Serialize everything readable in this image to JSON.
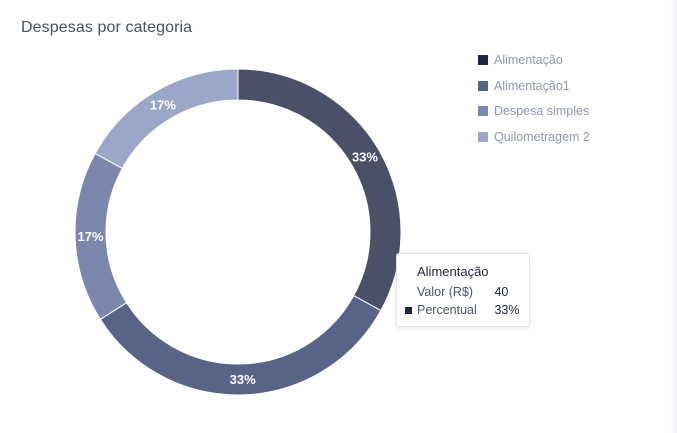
{
  "card": {
    "title": "Despesas por categoria"
  },
  "chart_data": {
    "type": "pie",
    "title": "Despesas por categoria",
    "donut": true,
    "categories": [
      "Alimentação",
      "Alimentação1",
      "Despesa simples",
      "Quilometragem 2"
    ],
    "values": [
      33,
      33,
      17,
      17
    ],
    "data_labels": [
      "33%",
      "33%",
      "17%",
      "17%"
    ],
    "colors": [
      "#4a5068",
      "#576387",
      "#7b87ac",
      "#9aa7c8"
    ],
    "legend_colors": [
      "#1c2640",
      "#576387",
      "#7b87ac",
      "#9aa7c8"
    ],
    "legend_position": "top-right"
  },
  "tooltip": {
    "title": "Alimentação",
    "rows": [
      {
        "label": "Valor (R$)",
        "value": "40"
      },
      {
        "label": "Percentual",
        "value": "33%"
      }
    ],
    "marker_color": "#1c2640"
  }
}
